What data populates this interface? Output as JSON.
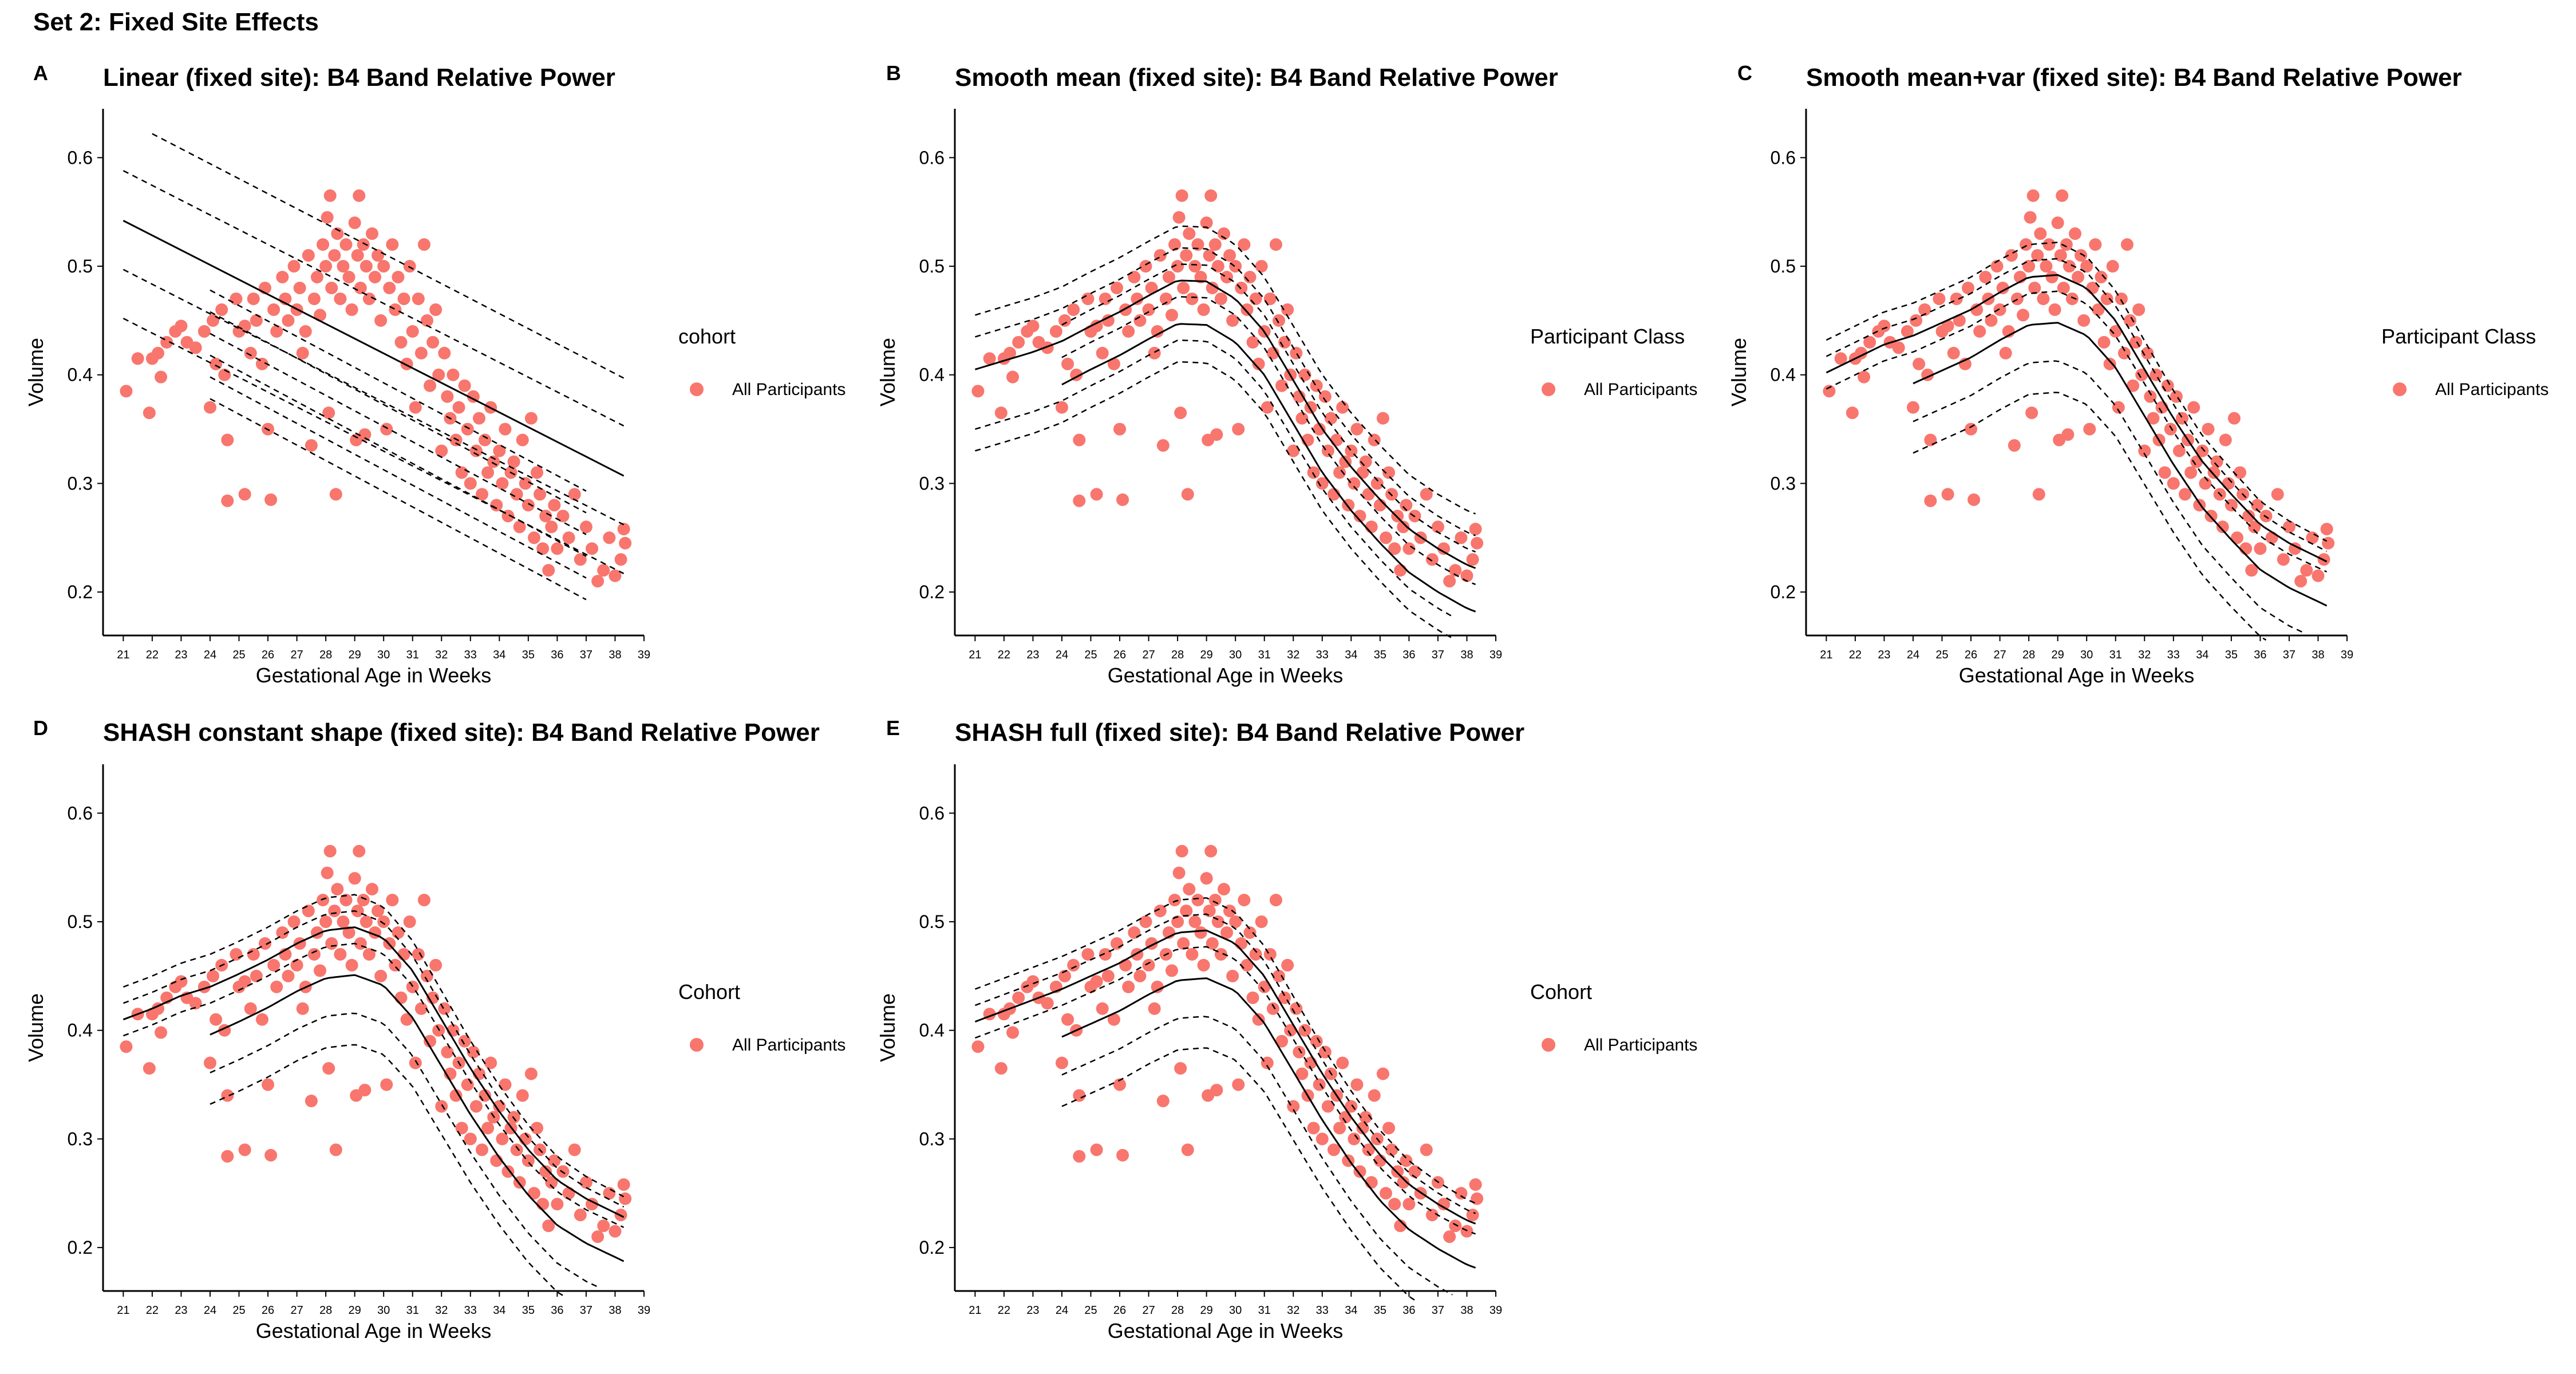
{
  "figure": {
    "title": "Set 2: Fixed Site Effects"
  },
  "colors": {
    "points": "#f8766d",
    "lines": "#000000",
    "axis": "#000000"
  },
  "chart_data": [
    {
      "id": "A",
      "type": "scatter",
      "title": "Linear (fixed site): B4 Band Relative Power",
      "xlabel": "Gestational Age in Weeks",
      "ylabel": "Volume",
      "legend_title": "cohort",
      "legend_entries": [
        "All Participants"
      ],
      "xlim": [
        20.3,
        39
      ],
      "ylim": [
        0.16,
        0.645
      ],
      "xticks": [
        21,
        22,
        23,
        24,
        25,
        26,
        27,
        28,
        29,
        30,
        31,
        32,
        33,
        34,
        35,
        36,
        37,
        38,
        39
      ],
      "yticks": [
        0.2,
        0.3,
        0.4,
        0.5,
        0.6
      ],
      "model": "linear",
      "lines": [
        {
          "style": "solid",
          "x": [
            21,
            38.3
          ],
          "y": [
            0.542,
            0.307
          ]
        },
        {
          "style": "dashed",
          "x": [
            22,
            38.3
          ],
          "y": [
            0.622,
            0.397
          ]
        },
        {
          "style": "dashed",
          "x": [
            21,
            38.3
          ],
          "y": [
            0.588,
            0.353
          ]
        },
        {
          "style": "dashed",
          "x": [
            21,
            38.3
          ],
          "y": [
            0.497,
            0.262
          ]
        },
        {
          "style": "dashed",
          "x": [
            21,
            38.3
          ],
          "y": [
            0.452,
            0.217
          ]
        },
        {
          "style": "dashed",
          "x": [
            24,
            37
          ],
          "y": [
            0.478,
            0.293
          ]
        },
        {
          "style": "dashed",
          "x": [
            24,
            37
          ],
          "y": [
            0.458,
            0.273
          ]
        },
        {
          "style": "dashed",
          "x": [
            24,
            37
          ],
          "y": [
            0.438,
            0.253
          ]
        },
        {
          "style": "dashed",
          "x": [
            24,
            37
          ],
          "y": [
            0.418,
            0.233
          ]
        },
        {
          "style": "dashed",
          "x": [
            24,
            37
          ],
          "y": [
            0.398,
            0.213
          ]
        },
        {
          "style": "dashed",
          "x": [
            24,
            37
          ],
          "y": [
            0.378,
            0.193
          ]
        }
      ]
    },
    {
      "id": "B",
      "type": "scatter",
      "title": "Smooth mean (fixed site): B4 Band Relative Power",
      "xlabel": "Gestational Age in Weeks",
      "ylabel": "Volume",
      "legend_title": "Participant Class",
      "legend_entries": [
        "All Participants"
      ],
      "xlim": [
        20.3,
        39
      ],
      "ylim": [
        0.16,
        0.645
      ],
      "xticks": [
        21,
        22,
        23,
        24,
        25,
        26,
        27,
        28,
        29,
        30,
        31,
        32,
        33,
        34,
        35,
        36,
        37,
        38,
        39
      ],
      "yticks": [
        0.2,
        0.3,
        0.4,
        0.5,
        0.6
      ],
      "model": "smooth_mean",
      "mean_curve": [
        [
          21,
          0.405
        ],
        [
          22,
          0.413
        ],
        [
          23,
          0.421
        ],
        [
          24,
          0.431
        ],
        [
          25,
          0.445
        ],
        [
          26,
          0.458
        ],
        [
          27,
          0.473
        ],
        [
          28,
          0.487
        ],
        [
          29,
          0.486
        ],
        [
          30,
          0.47
        ],
        [
          31,
          0.44
        ],
        [
          32,
          0.395
        ],
        [
          33,
          0.35
        ],
        [
          34,
          0.315
        ],
        [
          35,
          0.285
        ],
        [
          36,
          0.258
        ],
        [
          37,
          0.24
        ],
        [
          38,
          0.225
        ],
        [
          38.3,
          0.222
        ]
      ],
      "offsets": [
        0.05,
        0.03,
        -0.04,
        -0.05
      ],
      "offsets_narrow": [
        0.07,
        0.02,
        -0.02,
        -0.07
      ]
    },
    {
      "id": "C",
      "type": "scatter",
      "title": "Smooth mean+var (fixed site): B4 Band Relative Power",
      "xlabel": "Gestational Age in Weeks",
      "ylabel": "Volume",
      "legend_title": "Participant Class",
      "legend_entries": [
        "All Participants"
      ],
      "xlim": [
        20.3,
        39
      ],
      "ylim": [
        0.16,
        0.645
      ],
      "xticks": [
        21,
        22,
        23,
        24,
        25,
        26,
        27,
        28,
        29,
        30,
        31,
        32,
        33,
        34,
        35,
        36,
        37,
        38,
        39
      ],
      "yticks": [
        0.2,
        0.3,
        0.4,
        0.5,
        0.6
      ],
      "model": "smooth_mean_var",
      "mean_curve": [
        [
          21,
          0.402
        ],
        [
          22,
          0.415
        ],
        [
          23,
          0.428
        ],
        [
          24,
          0.436
        ],
        [
          25,
          0.448
        ],
        [
          26,
          0.46
        ],
        [
          27,
          0.476
        ],
        [
          28,
          0.49
        ],
        [
          29,
          0.492
        ],
        [
          30,
          0.48
        ],
        [
          31,
          0.45
        ],
        [
          32,
          0.405
        ],
        [
          33,
          0.36
        ],
        [
          34,
          0.32
        ],
        [
          35,
          0.29
        ],
        [
          36,
          0.262
        ],
        [
          37,
          0.245
        ],
        [
          38,
          0.232
        ],
        [
          38.3,
          0.228
        ]
      ]
    },
    {
      "id": "D",
      "type": "scatter",
      "title": "SHASH constant shape (fixed site): B4 Band Relative Power",
      "xlabel": "Gestational Age in Weeks",
      "ylabel": "Volume",
      "legend_title": "Cohort",
      "legend_entries": [
        "All Participants"
      ],
      "xlim": [
        20.3,
        39
      ],
      "ylim": [
        0.16,
        0.645
      ],
      "xticks": [
        21,
        22,
        23,
        24,
        25,
        26,
        27,
        28,
        29,
        30,
        31,
        32,
        33,
        34,
        35,
        36,
        37,
        38,
        39
      ],
      "yticks": [
        0.2,
        0.3,
        0.4,
        0.5,
        0.6
      ],
      "model": "shash_constant",
      "mean_curve": [
        [
          21,
          0.41
        ],
        [
          22,
          0.42
        ],
        [
          23,
          0.432
        ],
        [
          24,
          0.44
        ],
        [
          25,
          0.452
        ],
        [
          26,
          0.465
        ],
        [
          27,
          0.48
        ],
        [
          28,
          0.492
        ],
        [
          29,
          0.495
        ],
        [
          30,
          0.485
        ],
        [
          31,
          0.455
        ],
        [
          32,
          0.41
        ],
        [
          33,
          0.365
        ],
        [
          34,
          0.325
        ],
        [
          35,
          0.29
        ],
        [
          36,
          0.262
        ],
        [
          37,
          0.245
        ],
        [
          38,
          0.232
        ],
        [
          38.3,
          0.228
        ]
      ]
    },
    {
      "id": "E",
      "type": "scatter",
      "title": "SHASH full (fixed site): B4 Band Relative Power",
      "xlabel": "Gestational Age in Weeks",
      "ylabel": "Volume",
      "legend_title": "Cohort",
      "legend_entries": [
        "All Participants"
      ],
      "xlim": [
        20.3,
        39
      ],
      "ylim": [
        0.16,
        0.645
      ],
      "xticks": [
        21,
        22,
        23,
        24,
        25,
        26,
        27,
        28,
        29,
        30,
        31,
        32,
        33,
        34,
        35,
        36,
        37,
        38,
        39
      ],
      "yticks": [
        0.2,
        0.3,
        0.4,
        0.5,
        0.6
      ],
      "model": "shash_full",
      "mean_curve": [
        [
          21,
          0.408
        ],
        [
          22,
          0.418
        ],
        [
          23,
          0.428
        ],
        [
          24,
          0.438
        ],
        [
          25,
          0.45
        ],
        [
          26,
          0.462
        ],
        [
          27,
          0.477
        ],
        [
          28,
          0.49
        ],
        [
          29,
          0.492
        ],
        [
          30,
          0.48
        ],
        [
          31,
          0.45
        ],
        [
          32,
          0.405
        ],
        [
          33,
          0.36
        ],
        [
          34,
          0.32
        ],
        [
          35,
          0.285
        ],
        [
          36,
          0.258
        ],
        [
          37,
          0.24
        ],
        [
          38,
          0.225
        ],
        [
          38.3,
          0.222
        ]
      ]
    }
  ],
  "scatter_points": [
    [
      21.1,
      0.385
    ],
    [
      21.5,
      0.415
    ],
    [
      21.9,
      0.365
    ],
    [
      22.0,
      0.415
    ],
    [
      22.2,
      0.42
    ],
    [
      22.3,
      0.398
    ],
    [
      22.5,
      0.43
    ],
    [
      22.8,
      0.44
    ],
    [
      23.0,
      0.445
    ],
    [
      23.2,
      0.43
    ],
    [
      23.5,
      0.425
    ],
    [
      23.8,
      0.44
    ],
    [
      24.0,
      0.37
    ],
    [
      24.1,
      0.45
    ],
    [
      24.2,
      0.41
    ],
    [
      24.4,
      0.46
    ],
    [
      24.5,
      0.4
    ],
    [
      24.6,
      0.284
    ],
    [
      24.6,
      0.34
    ],
    [
      24.9,
      0.47
    ],
    [
      25.0,
      0.44
    ],
    [
      25.2,
      0.445
    ],
    [
      25.2,
      0.29
    ],
    [
      25.4,
      0.42
    ],
    [
      25.5,
      0.47
    ],
    [
      25.6,
      0.45
    ],
    [
      25.8,
      0.41
    ],
    [
      25.9,
      0.48
    ],
    [
      26.0,
      0.35
    ],
    [
      26.1,
      0.285
    ],
    [
      26.2,
      0.46
    ],
    [
      26.3,
      0.44
    ],
    [
      26.5,
      0.49
    ],
    [
      26.6,
      0.47
    ],
    [
      26.7,
      0.45
    ],
    [
      26.9,
      0.5
    ],
    [
      27.0,
      0.46
    ],
    [
      27.1,
      0.48
    ],
    [
      27.2,
      0.42
    ],
    [
      27.3,
      0.44
    ],
    [
      27.4,
      0.51
    ],
    [
      27.5,
      0.335
    ],
    [
      27.6,
      0.47
    ],
    [
      27.7,
      0.49
    ],
    [
      27.8,
      0.455
    ],
    [
      27.9,
      0.52
    ],
    [
      28.0,
      0.5
    ],
    [
      28.05,
      0.545
    ],
    [
      28.1,
      0.365
    ],
    [
      28.15,
      0.565
    ],
    [
      28.2,
      0.48
    ],
    [
      28.3,
      0.51
    ],
    [
      28.35,
      0.29
    ],
    [
      28.4,
      0.53
    ],
    [
      28.5,
      0.47
    ],
    [
      28.6,
      0.5
    ],
    [
      28.7,
      0.52
    ],
    [
      28.8,
      0.49
    ],
    [
      28.9,
      0.46
    ],
    [
      29.0,
      0.54
    ],
    [
      29.05,
      0.34
    ],
    [
      29.1,
      0.51
    ],
    [
      29.15,
      0.565
    ],
    [
      29.2,
      0.48
    ],
    [
      29.3,
      0.52
    ],
    [
      29.35,
      0.345
    ],
    [
      29.4,
      0.5
    ],
    [
      29.5,
      0.47
    ],
    [
      29.6,
      0.53
    ],
    [
      29.7,
      0.49
    ],
    [
      29.8,
      0.51
    ],
    [
      29.9,
      0.45
    ],
    [
      30.0,
      0.5
    ],
    [
      30.1,
      0.35
    ],
    [
      30.2,
      0.48
    ],
    [
      30.3,
      0.52
    ],
    [
      30.4,
      0.46
    ],
    [
      30.5,
      0.49
    ],
    [
      30.6,
      0.43
    ],
    [
      30.7,
      0.47
    ],
    [
      30.8,
      0.41
    ],
    [
      30.9,
      0.5
    ],
    [
      31.0,
      0.44
    ],
    [
      31.1,
      0.37
    ],
    [
      31.2,
      0.47
    ],
    [
      31.3,
      0.42
    ],
    [
      31.4,
      0.52
    ],
    [
      31.5,
      0.45
    ],
    [
      31.6,
      0.39
    ],
    [
      31.7,
      0.43
    ],
    [
      31.8,
      0.46
    ],
    [
      31.9,
      0.4
    ],
    [
      32.0,
      0.33
    ],
    [
      32.1,
      0.42
    ],
    [
      32.2,
      0.38
    ],
    [
      32.3,
      0.36
    ],
    [
      32.4,
      0.4
    ],
    [
      32.5,
      0.34
    ],
    [
      32.6,
      0.37
    ],
    [
      32.7,
      0.31
    ],
    [
      32.8,
      0.39
    ],
    [
      32.9,
      0.35
    ],
    [
      33.0,
      0.3
    ],
    [
      33.1,
      0.38
    ],
    [
      33.2,
      0.33
    ],
    [
      33.3,
      0.36
    ],
    [
      33.4,
      0.29
    ],
    [
      33.5,
      0.34
    ],
    [
      33.6,
      0.31
    ],
    [
      33.7,
      0.37
    ],
    [
      33.8,
      0.32
    ],
    [
      33.9,
      0.28
    ],
    [
      34.0,
      0.33
    ],
    [
      34.1,
      0.3
    ],
    [
      34.2,
      0.35
    ],
    [
      34.3,
      0.27
    ],
    [
      34.4,
      0.31
    ],
    [
      34.5,
      0.32
    ],
    [
      34.6,
      0.29
    ],
    [
      34.7,
      0.26
    ],
    [
      34.8,
      0.34
    ],
    [
      34.9,
      0.3
    ],
    [
      35.0,
      0.28
    ],
    [
      35.1,
      0.36
    ],
    [
      35.2,
      0.25
    ],
    [
      35.3,
      0.31
    ],
    [
      35.4,
      0.29
    ],
    [
      35.5,
      0.24
    ],
    [
      35.6,
      0.27
    ],
    [
      35.7,
      0.22
    ],
    [
      35.8,
      0.26
    ],
    [
      35.9,
      0.28
    ],
    [
      36.0,
      0.24
    ],
    [
      36.2,
      0.27
    ],
    [
      36.4,
      0.25
    ],
    [
      36.6,
      0.29
    ],
    [
      36.8,
      0.23
    ],
    [
      37.0,
      0.26
    ],
    [
      37.2,
      0.24
    ],
    [
      37.4,
      0.21
    ],
    [
      37.6,
      0.22
    ],
    [
      37.8,
      0.25
    ],
    [
      38.0,
      0.215
    ],
    [
      38.2,
      0.23
    ],
    [
      38.3,
      0.258
    ],
    [
      38.35,
      0.245
    ]
  ]
}
